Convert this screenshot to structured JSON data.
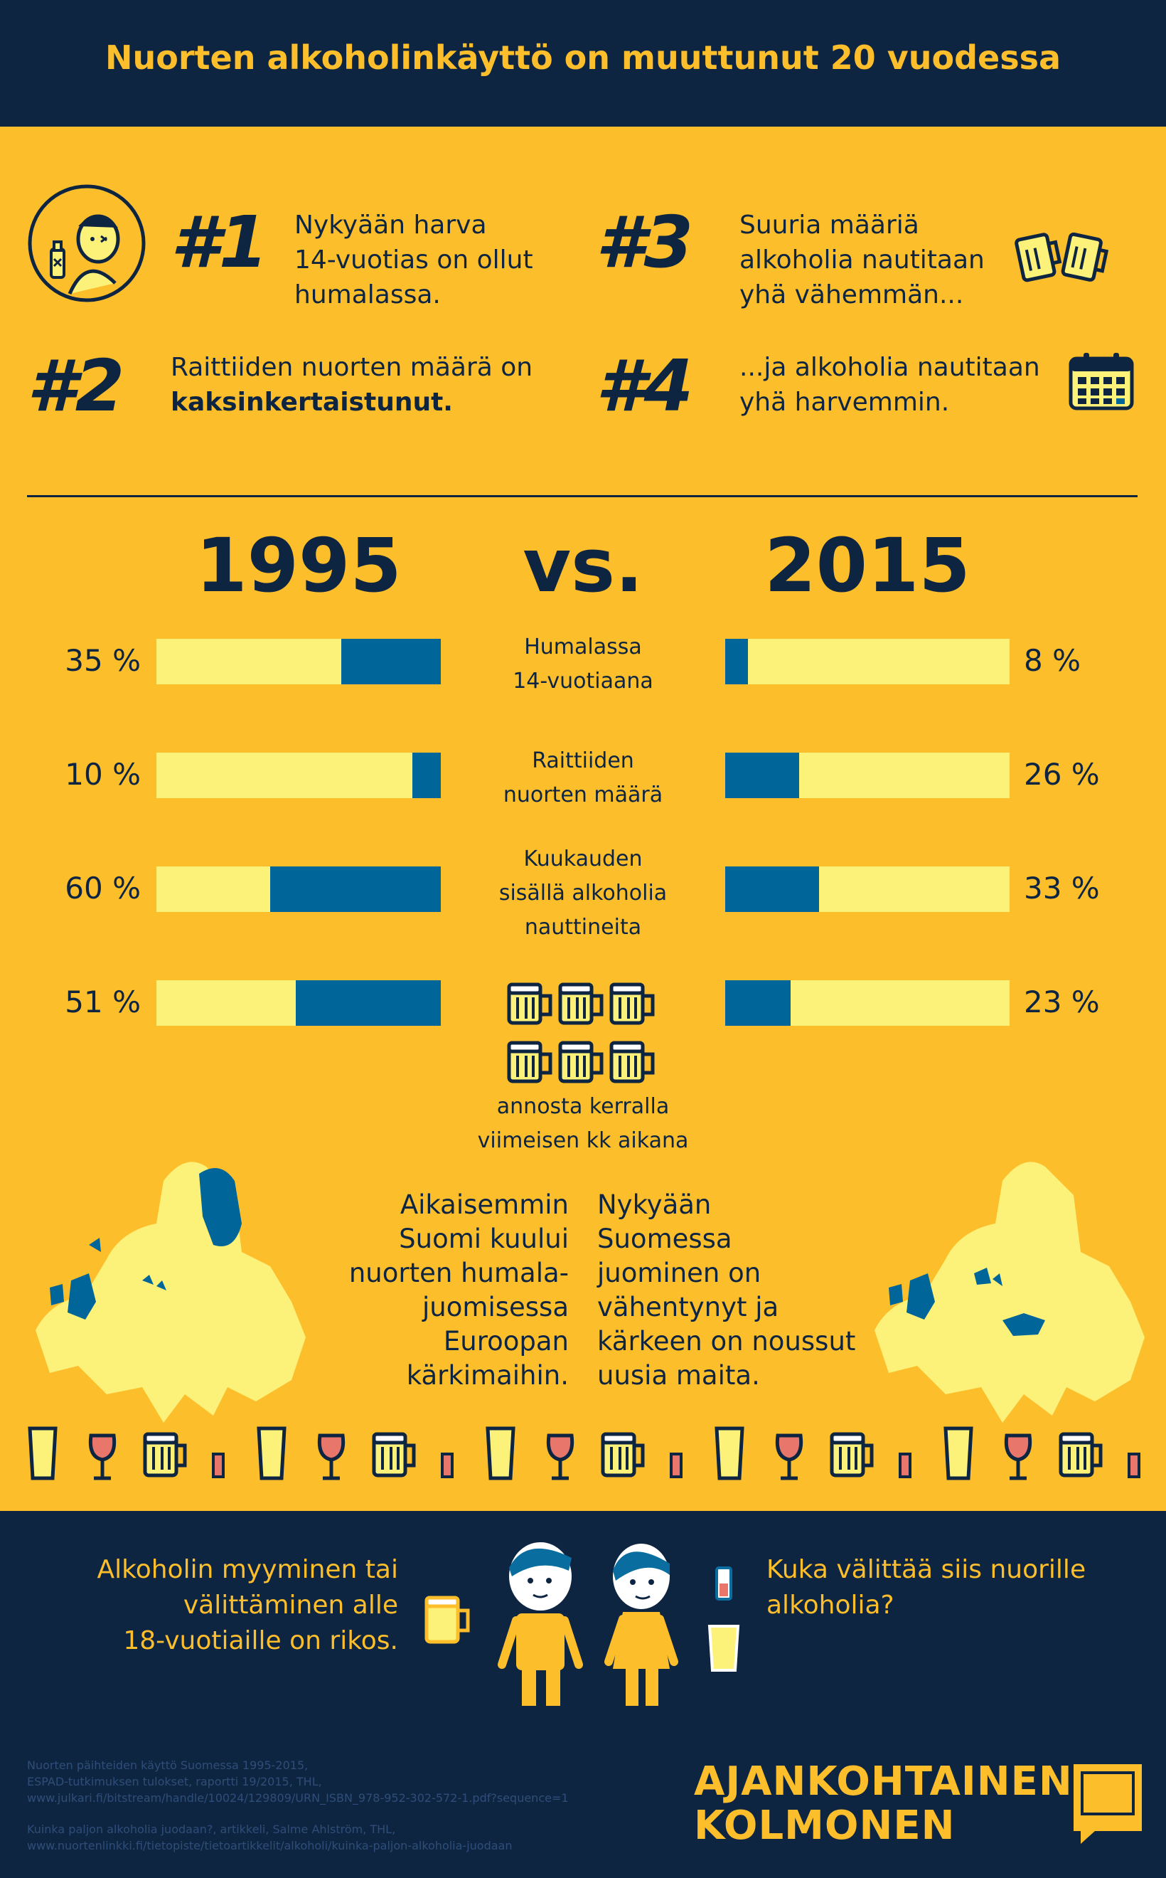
{
  "header": {
    "title": "Nuorten alkoholinkäyttö on muuttunut 20 vuodessa"
  },
  "facts": [
    {
      "number": "#1",
      "line1": "Nykyään harva",
      "line2": "14-vuotias on ollut",
      "line3": "humalassa."
    },
    {
      "number": "#2",
      "line1": "Raittiiden nuorten määrä on",
      "bold": "kaksinkertaistunut."
    },
    {
      "number": "#3",
      "line1": "Suuria määriä",
      "line2": "alkoholia nautitaan",
      "line3": "yhä vähemmän..."
    },
    {
      "number": "#4",
      "line1": "...ja alkoholia nautitaan",
      "line2": "yhä harvemmin."
    }
  ],
  "comparison": {
    "year_left": "1995",
    "vs": "vs.",
    "year_right": "2015",
    "metrics": [
      {
        "label_lines": [
          "Humalassa",
          "14-vuotiaana"
        ],
        "left_pct": "35 %",
        "left_value": 35,
        "right_pct": "8 %",
        "right_value": 8
      },
      {
        "label_lines": [
          "Raittiiden",
          "nuorten määrä"
        ],
        "left_pct": "10 %",
        "left_value": 10,
        "right_pct": "26 %",
        "right_value": 26
      },
      {
        "label_lines": [
          "Kuukauden",
          "sisällä alkoholia",
          "nauttineita"
        ],
        "left_pct": "60 %",
        "left_value": 60,
        "right_pct": "33 %",
        "right_value": 33
      },
      {
        "label_lines": [
          "annosta kerralla",
          "viimeisen kk aikana"
        ],
        "left_pct": "51 %",
        "left_value": 51,
        "right_pct": "23 %",
        "right_value": 23
      }
    ]
  },
  "maps": {
    "left_text": [
      "Aikaisemmin",
      "Suomi kuului",
      "nuorten humala-",
      "juomisessa",
      "Euroopan",
      "kärkimaihin."
    ],
    "right_text": [
      "Nykyään",
      "Suomessa",
      "juominen on",
      "vähentynyt ja",
      "kärkeen on noussut",
      "uusia maita."
    ]
  },
  "footer": {
    "left_text": [
      "Alkoholin myyminen tai",
      "välittäminen alle",
      "18-vuotiaille on rikos."
    ],
    "right_text": [
      "Kuka välittää siis nuorille",
      "alkoholia?"
    ],
    "sources": [
      "Nuorten päihteiden käyttö Suomessa 1995-2015,",
      "ESPAD-tutkimuksen tulokset, raportti 19/2015, THL,",
      "www.julkari.fi/bitstream/handle/10024/129809/URN_ISBN_978-952-302-572-1.pdf?sequence=1",
      "Kuinka paljon alkoholia juodaan?, artikkeli, Salme Ahlström, THL,",
      "www.nuortenlinkki.fi/tietopiste/tietoartikkelit/alkoholi/kuinka-paljon-alkoholia-juodaan"
    ],
    "brand_line1": "AJANKOHTAINEN",
    "brand_line2": "KOLMONEN"
  },
  "colors": {
    "navy": "#0E2542",
    "yellow": "#FDBE2C",
    "pale": "#FCF27A",
    "blue": "#006699",
    "wine": "#E8766B"
  }
}
